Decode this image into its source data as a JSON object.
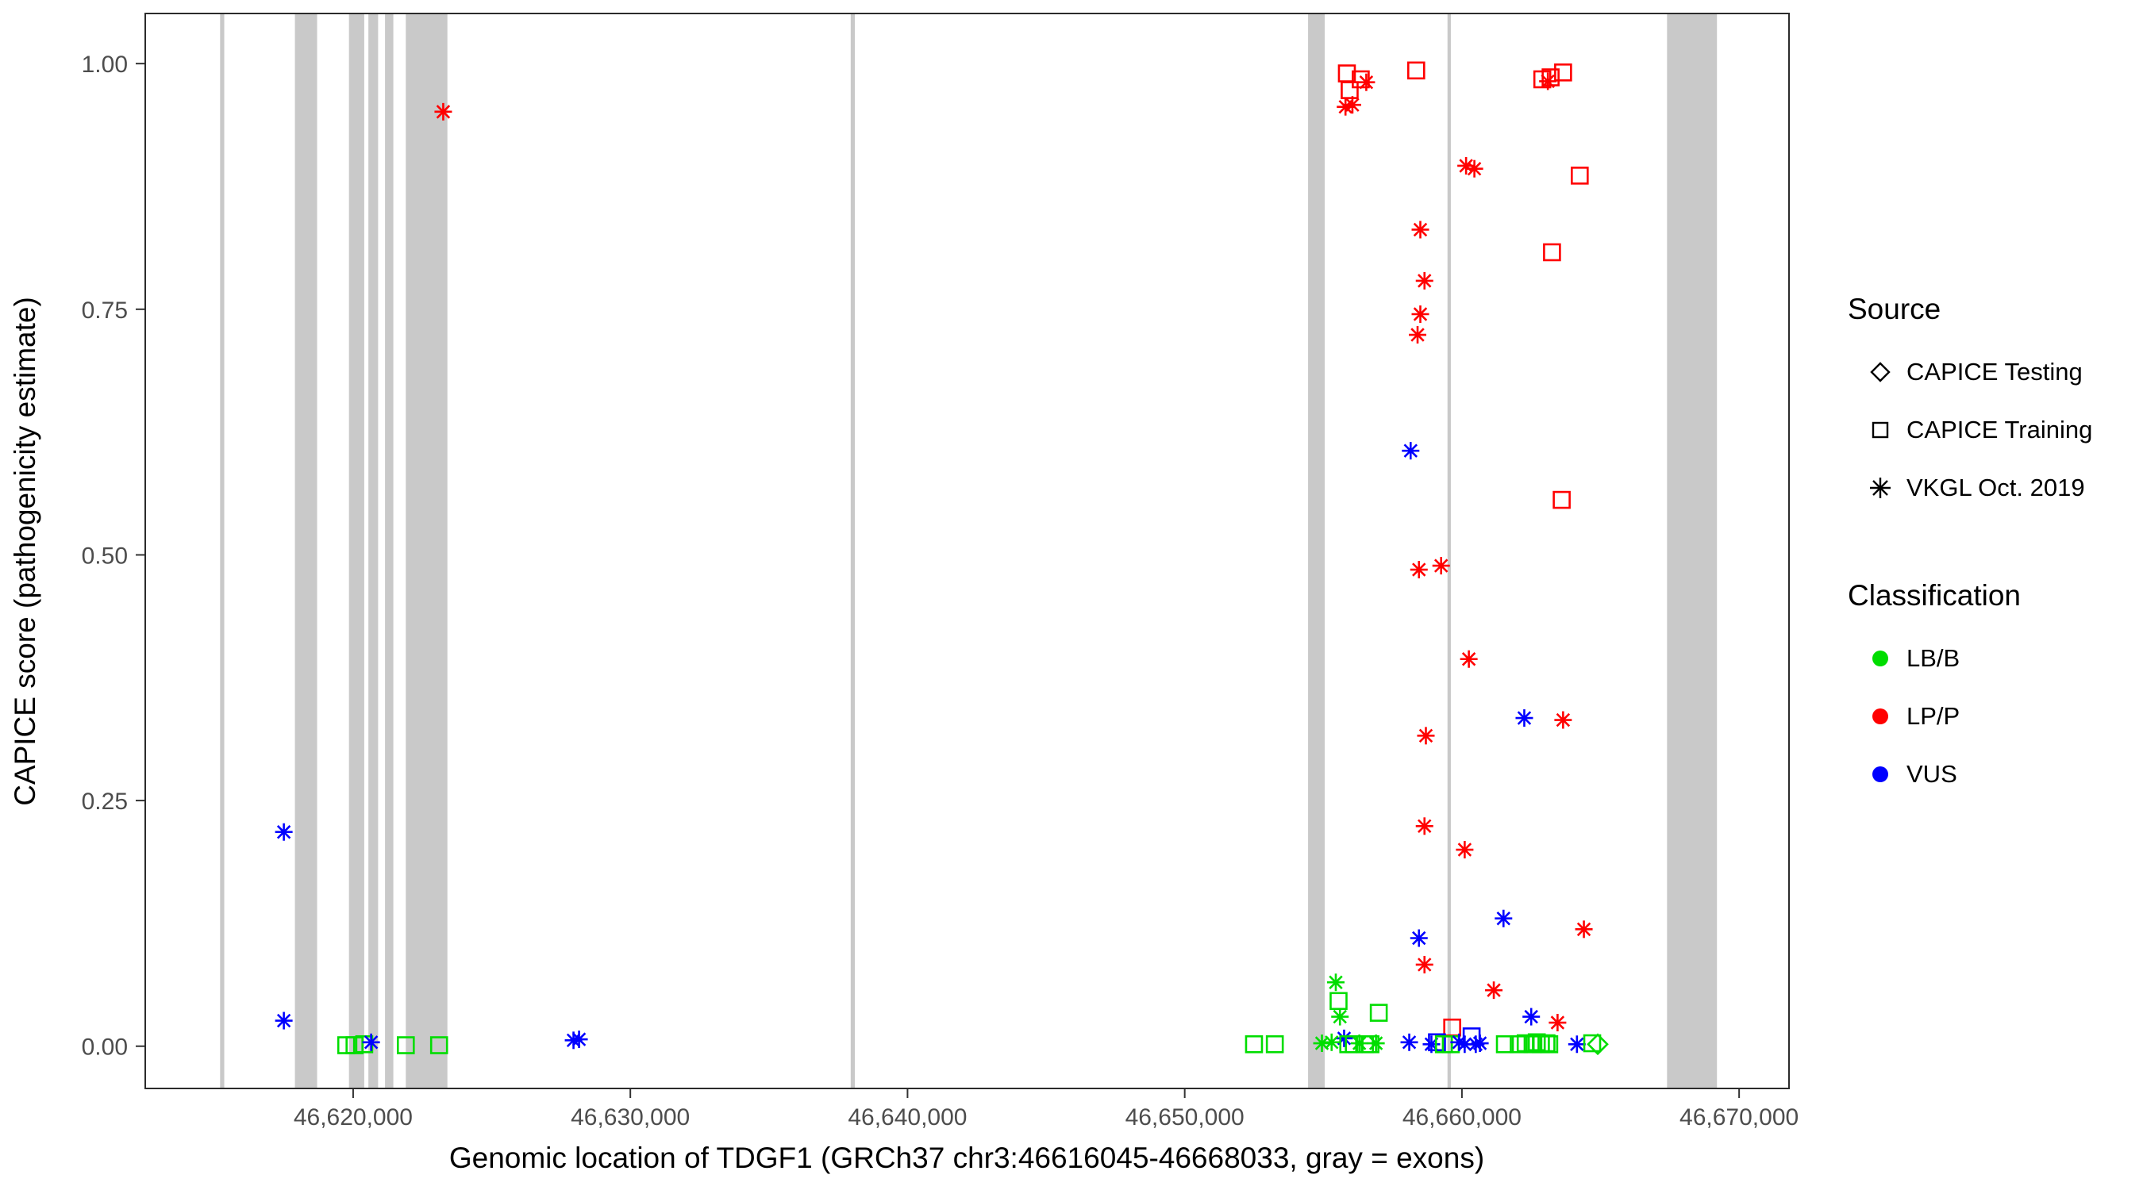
{
  "chart_data": {
    "type": "scatter",
    "title": "",
    "xlabel": "Genomic location of TDGF1 (GRCh37 chr3:46616045-46668033, gray = exons)",
    "ylabel": "CAPICE score (pathogenicity estimate)",
    "x_domain": [
      46612500,
      46671800
    ],
    "y_domain": [
      -0.043,
      1.051
    ],
    "grid": "off",
    "x_ticks": [
      {
        "value": 46620000,
        "label": "46,620,000"
      },
      {
        "value": 46630000,
        "label": "46,630,000"
      },
      {
        "value": 46640000,
        "label": "46,640,000"
      },
      {
        "value": 46650000,
        "label": "46,650,000"
      },
      {
        "value": 46660000,
        "label": "46,660,000"
      },
      {
        "value": 46670000,
        "label": "46,670,000"
      }
    ],
    "y_ticks": [
      {
        "value": 0.0,
        "label": "0.00"
      },
      {
        "value": 0.25,
        "label": "0.25"
      },
      {
        "value": 0.5,
        "label": "0.50"
      },
      {
        "value": 0.75,
        "label": "0.75"
      },
      {
        "value": 1.0,
        "label": "1.00"
      }
    ],
    "exon_color": "#c9c9c9",
    "exons": [
      [
        46615200,
        46615350
      ],
      [
        46617900,
        46618700
      ],
      [
        46619850,
        46620400
      ],
      [
        46620550,
        46620900
      ],
      [
        46621150,
        46621450
      ],
      [
        46621900,
        46623400
      ],
      [
        46637950,
        46638100
      ],
      [
        46654450,
        46655050
      ],
      [
        46659480,
        46659600
      ],
      [
        46667400,
        46669200
      ]
    ],
    "legend": {
      "position": "right",
      "source": {
        "title": "Source",
        "items": [
          {
            "label": "CAPICE Testing",
            "shape": "diamond"
          },
          {
            "label": "CAPICE Training",
            "shape": "square"
          },
          {
            "label": "VKGL Oct. 2019",
            "shape": "asterisk"
          }
        ]
      },
      "classification": {
        "title": "Classification",
        "items": [
          {
            "label": "LB/B",
            "color": "#00dd00"
          },
          {
            "label": "LP/P",
            "color": "#ff0000"
          },
          {
            "label": "VUS",
            "color": "#0000ff"
          }
        ]
      }
    },
    "colors": {
      "LB/B": "#00dd00",
      "LP/P": "#ff0000",
      "VUS": "#0000ff"
    },
    "points": [
      {
        "x": 46617500,
        "y": 0.218,
        "cls": "VUS",
        "src": "vkgl"
      },
      {
        "x": 46617500,
        "y": 0.026,
        "cls": "VUS",
        "src": "vkgl"
      },
      {
        "x": 46619750,
        "y": 0.001,
        "cls": "LB/B",
        "src": "training"
      },
      {
        "x": 46620050,
        "y": 0.001,
        "cls": "LB/B",
        "src": "training"
      },
      {
        "x": 46620400,
        "y": 0.002,
        "cls": "LB/B",
        "src": "training"
      },
      {
        "x": 46620650,
        "y": 0.004,
        "cls": "VUS",
        "src": "vkgl"
      },
      {
        "x": 46621900,
        "y": 0.001,
        "cls": "LB/B",
        "src": "training"
      },
      {
        "x": 46623100,
        "y": 0.001,
        "cls": "LB/B",
        "src": "training"
      },
      {
        "x": 46623250,
        "y": 0.951,
        "cls": "LP/P",
        "src": "vkgl"
      },
      {
        "x": 46627950,
        "y": 0.006,
        "cls": "VUS",
        "src": "vkgl"
      },
      {
        "x": 46628150,
        "y": 0.007,
        "cls": "VUS",
        "src": "vkgl"
      },
      {
        "x": 46655800,
        "y": 0.956,
        "cls": "LP/P",
        "src": "vkgl"
      },
      {
        "x": 46656050,
        "y": 0.958,
        "cls": "LP/P",
        "src": "vkgl"
      },
      {
        "x": 46655850,
        "y": 0.99,
        "cls": "LP/P",
        "src": "training"
      },
      {
        "x": 46655950,
        "y": 0.973,
        "cls": "LP/P",
        "src": "training"
      },
      {
        "x": 46656350,
        "y": 0.984,
        "cls": "LP/P",
        "src": "training"
      },
      {
        "x": 46656550,
        "y": 0.981,
        "cls": "LP/P",
        "src": "vkgl"
      },
      {
        "x": 46658350,
        "y": 0.993,
        "cls": "LP/P",
        "src": "training"
      },
      {
        "x": 46662900,
        "y": 0.984,
        "cls": "LP/P",
        "src": "training"
      },
      {
        "x": 46663100,
        "y": 0.982,
        "cls": "LP/P",
        "src": "vkgl"
      },
      {
        "x": 46663200,
        "y": 0.986,
        "cls": "LP/P",
        "src": "training"
      },
      {
        "x": 46663650,
        "y": 0.991,
        "cls": "LP/P",
        "src": "training"
      },
      {
        "x": 46660150,
        "y": 0.896,
        "cls": "LP/P",
        "src": "vkgl"
      },
      {
        "x": 46660450,
        "y": 0.893,
        "cls": "LP/P",
        "src": "vkgl"
      },
      {
        "x": 46664250,
        "y": 0.886,
        "cls": "LP/P",
        "src": "training"
      },
      {
        "x": 46658500,
        "y": 0.831,
        "cls": "LP/P",
        "src": "vkgl"
      },
      {
        "x": 46663250,
        "y": 0.808,
        "cls": "LP/P",
        "src": "training"
      },
      {
        "x": 46658650,
        "y": 0.779,
        "cls": "LP/P",
        "src": "vkgl"
      },
      {
        "x": 46658500,
        "y": 0.745,
        "cls": "LP/P",
        "src": "vkgl"
      },
      {
        "x": 46658400,
        "y": 0.724,
        "cls": "LP/P",
        "src": "vkgl"
      },
      {
        "x": 46658150,
        "y": 0.606,
        "cls": "VUS",
        "src": "vkgl"
      },
      {
        "x": 46663600,
        "y": 0.556,
        "cls": "LP/P",
        "src": "training"
      },
      {
        "x": 46658450,
        "y": 0.485,
        "cls": "LP/P",
        "src": "vkgl"
      },
      {
        "x": 46659250,
        "y": 0.489,
        "cls": "LP/P",
        "src": "vkgl"
      },
      {
        "x": 46660250,
        "y": 0.394,
        "cls": "LP/P",
        "src": "vkgl"
      },
      {
        "x": 46662250,
        "y": 0.334,
        "cls": "VUS",
        "src": "vkgl"
      },
      {
        "x": 46663650,
        "y": 0.332,
        "cls": "LP/P",
        "src": "vkgl"
      },
      {
        "x": 46658700,
        "y": 0.316,
        "cls": "LP/P",
        "src": "vkgl"
      },
      {
        "x": 46658650,
        "y": 0.224,
        "cls": "LP/P",
        "src": "vkgl"
      },
      {
        "x": 46660100,
        "y": 0.2,
        "cls": "LP/P",
        "src": "vkgl"
      },
      {
        "x": 46661500,
        "y": 0.13,
        "cls": "VUS",
        "src": "vkgl"
      },
      {
        "x": 46664400,
        "y": 0.119,
        "cls": "LP/P",
        "src": "vkgl"
      },
      {
        "x": 46658450,
        "y": 0.11,
        "cls": "VUS",
        "src": "vkgl"
      },
      {
        "x": 46658650,
        "y": 0.083,
        "cls": "LP/P",
        "src": "vkgl"
      },
      {
        "x": 46655450,
        "y": 0.065,
        "cls": "LB/B",
        "src": "vkgl"
      },
      {
        "x": 46661150,
        "y": 0.057,
        "cls": "LP/P",
        "src": "vkgl"
      },
      {
        "x": 46655550,
        "y": 0.046,
        "cls": "LB/B",
        "src": "training"
      },
      {
        "x": 46657000,
        "y": 0.034,
        "cls": "LB/B",
        "src": "training"
      },
      {
        "x": 46655600,
        "y": 0.03,
        "cls": "LB/B",
        "src": "vkgl"
      },
      {
        "x": 46662500,
        "y": 0.03,
        "cls": "VUS",
        "src": "vkgl"
      },
      {
        "x": 46663450,
        "y": 0.024,
        "cls": "LP/P",
        "src": "vkgl"
      },
      {
        "x": 46659650,
        "y": 0.019,
        "cls": "LP/P",
        "src": "training"
      },
      {
        "x": 46660350,
        "y": 0.01,
        "cls": "VUS",
        "src": "training"
      },
      {
        "x": 46655750,
        "y": 0.008,
        "cls": "VUS",
        "src": "vkgl"
      },
      {
        "x": 46652500,
        "y": 0.002,
        "cls": "LB/B",
        "src": "training"
      },
      {
        "x": 46653250,
        "y": 0.002,
        "cls": "LB/B",
        "src": "training"
      },
      {
        "x": 46654950,
        "y": 0.003,
        "cls": "LB/B",
        "src": "vkgl"
      },
      {
        "x": 46655300,
        "y": 0.004,
        "cls": "LB/B",
        "src": "vkgl"
      },
      {
        "x": 46655900,
        "y": 0.002,
        "cls": "LB/B",
        "src": "training"
      },
      {
        "x": 46656100,
        "y": 0.002,
        "cls": "LB/B",
        "src": "training"
      },
      {
        "x": 46656300,
        "y": 0.003,
        "cls": "LB/B",
        "src": "vkgl"
      },
      {
        "x": 46656500,
        "y": 0.002,
        "cls": "LB/B",
        "src": "training"
      },
      {
        "x": 46656700,
        "y": 0.002,
        "cls": "LB/B",
        "src": "training"
      },
      {
        "x": 46656900,
        "y": 0.003,
        "cls": "LB/B",
        "src": "vkgl"
      },
      {
        "x": 46658100,
        "y": 0.004,
        "cls": "VUS",
        "src": "vkgl"
      },
      {
        "x": 46658900,
        "y": 0.002,
        "cls": "VUS",
        "src": "vkgl"
      },
      {
        "x": 46659100,
        "y": 0.004,
        "cls": "VUS",
        "src": "training"
      },
      {
        "x": 46659350,
        "y": 0.002,
        "cls": "LB/B",
        "src": "training"
      },
      {
        "x": 46659600,
        "y": 0.002,
        "cls": "LB/B",
        "src": "training"
      },
      {
        "x": 46659900,
        "y": 0.004,
        "cls": "VUS",
        "src": "vkgl"
      },
      {
        "x": 46660100,
        "y": 0.002,
        "cls": "VUS",
        "src": "vkgl"
      },
      {
        "x": 46660500,
        "y": 0.002,
        "cls": "VUS",
        "src": "vkgl"
      },
      {
        "x": 46660650,
        "y": 0.003,
        "cls": "VUS",
        "src": "vkgl"
      },
      {
        "x": 46661550,
        "y": 0.002,
        "cls": "LB/B",
        "src": "training"
      },
      {
        "x": 46662050,
        "y": 0.002,
        "cls": "LB/B",
        "src": "training"
      },
      {
        "x": 46662300,
        "y": 0.003,
        "cls": "LB/B",
        "src": "training"
      },
      {
        "x": 46662550,
        "y": 0.002,
        "cls": "LB/B",
        "src": "training"
      },
      {
        "x": 46662700,
        "y": 0.004,
        "cls": "LB/B",
        "src": "training"
      },
      {
        "x": 46662850,
        "y": 0.002,
        "cls": "LB/B",
        "src": "training"
      },
      {
        "x": 46663050,
        "y": 0.003,
        "cls": "LB/B",
        "src": "training"
      },
      {
        "x": 46663150,
        "y": 0.002,
        "cls": "LB/B",
        "src": "training"
      },
      {
        "x": 46664150,
        "y": 0.002,
        "cls": "VUS",
        "src": "vkgl"
      },
      {
        "x": 46664700,
        "y": 0.003,
        "cls": "LB/B",
        "src": "training"
      },
      {
        "x": 46664900,
        "y": 0.002,
        "cls": "LB/B",
        "src": "testing"
      }
    ]
  }
}
